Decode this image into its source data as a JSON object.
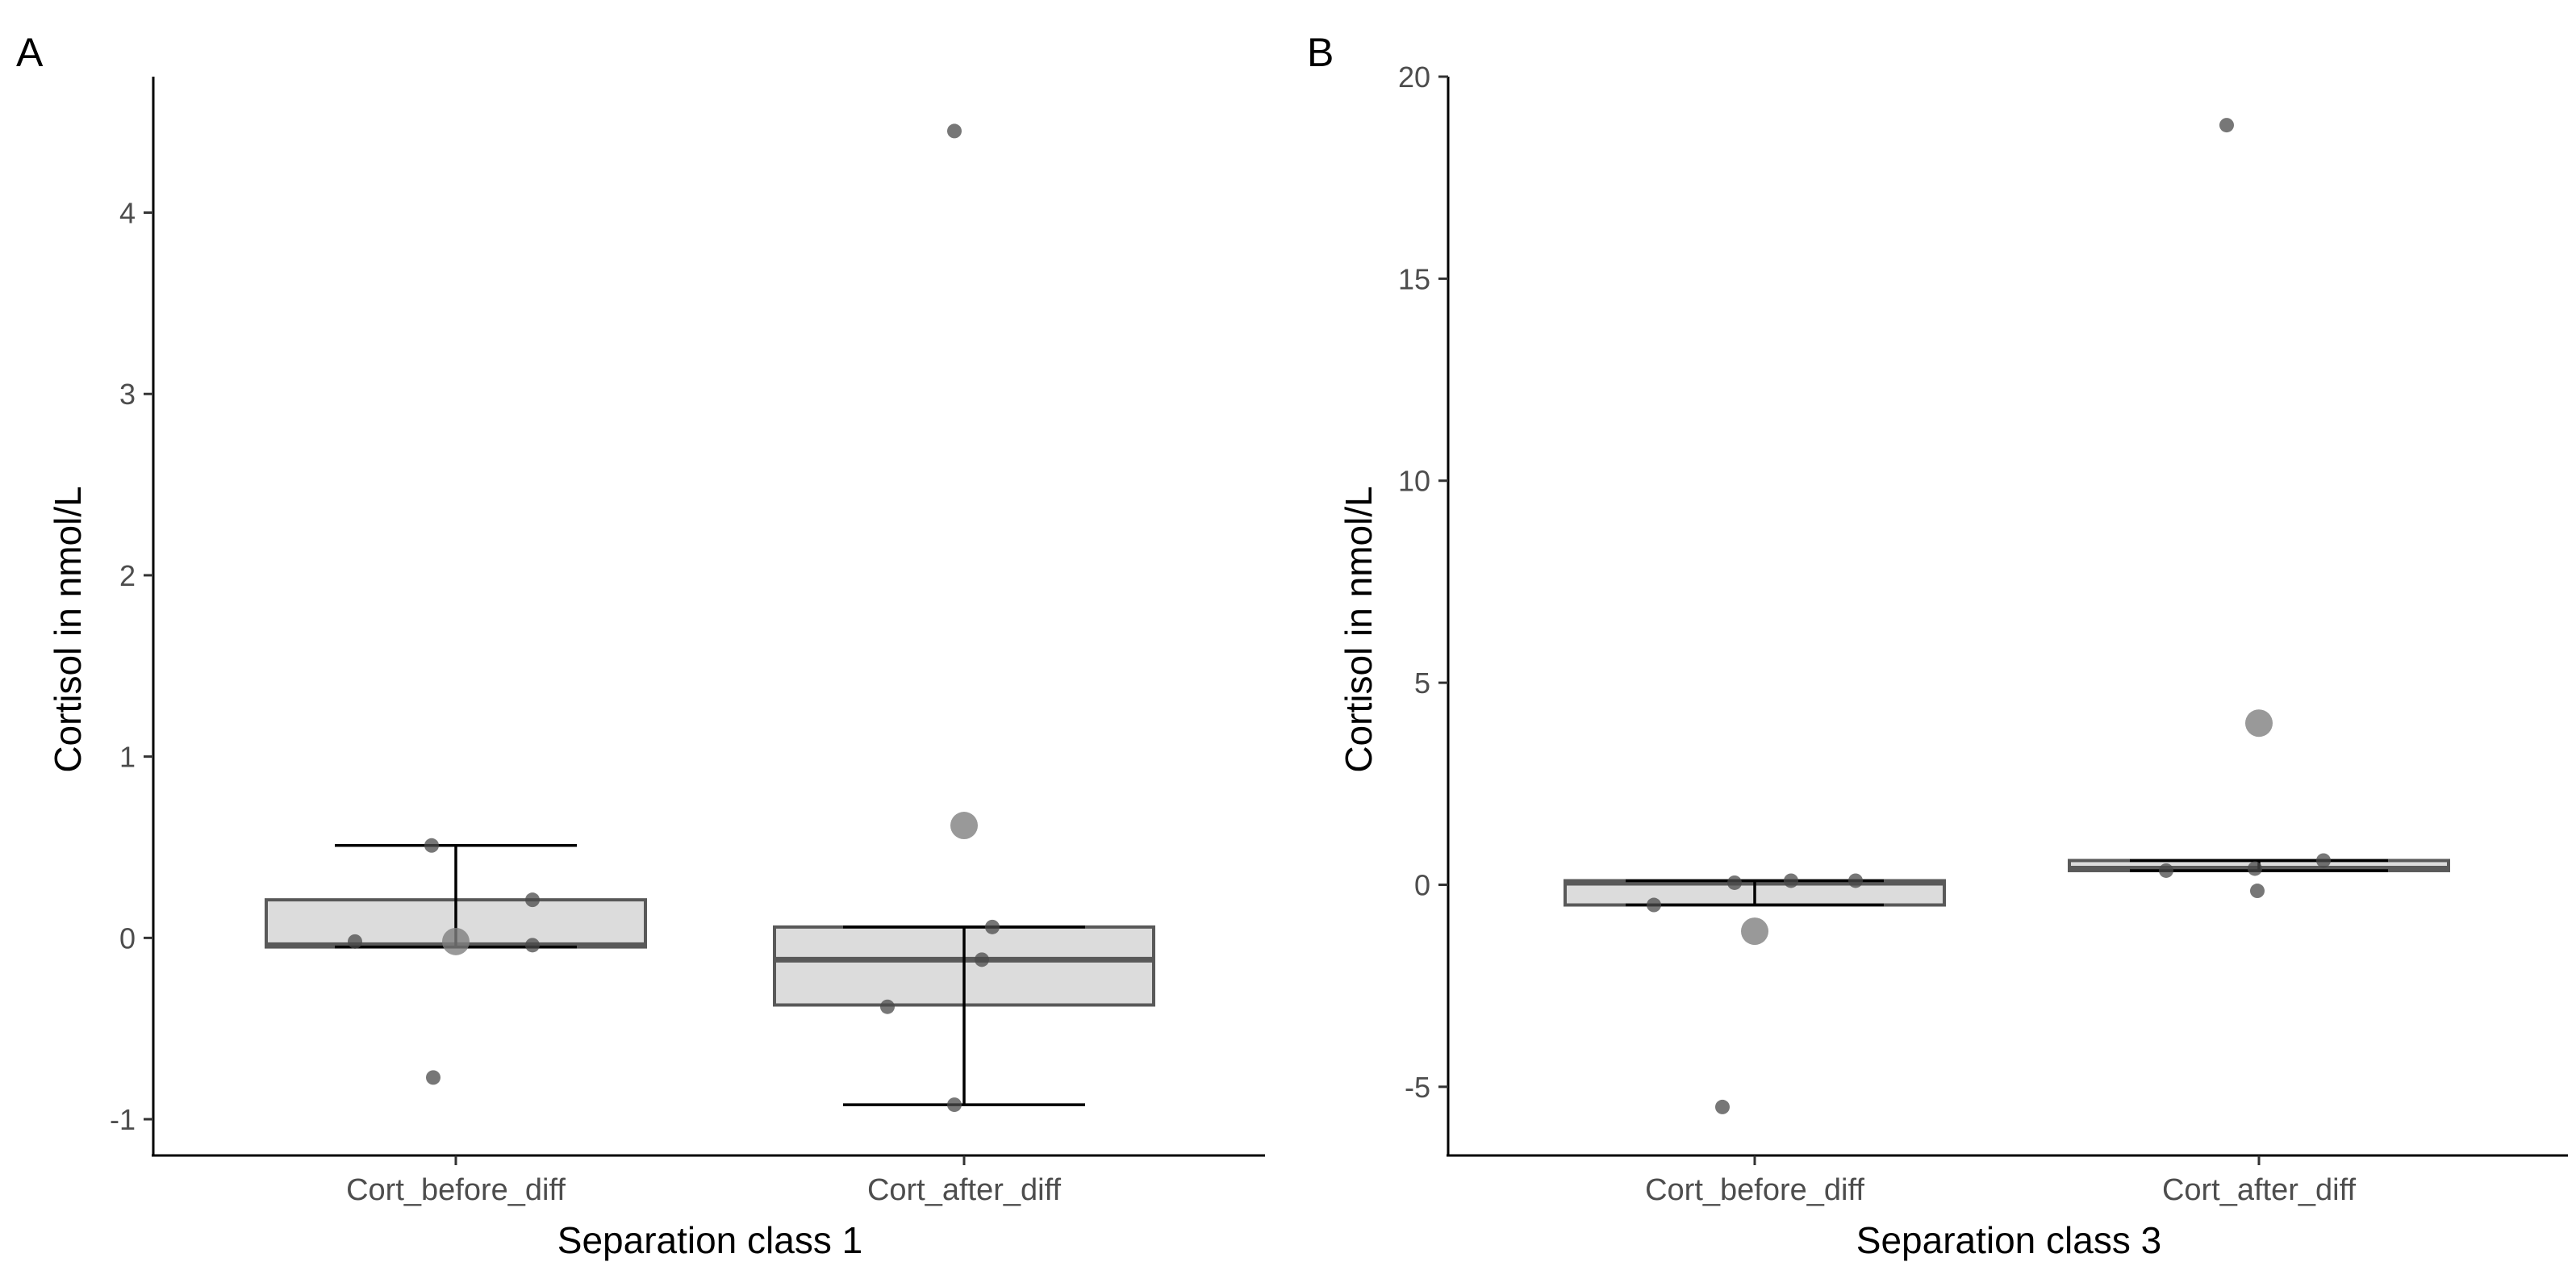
{
  "chart_data": [
    {
      "type": "box",
      "panel_label": "A",
      "xlabel": "Separation class 1",
      "ylabel": "Cortisol in nmol/L",
      "categories": [
        "Cort_before_diff",
        "Cort_after_diff"
      ],
      "ylim": [
        -1.2,
        4.75
      ],
      "yticks": [
        -1,
        0,
        1,
        2,
        3,
        4
      ],
      "ytick_labels": [
        "-1",
        "0",
        "1",
        "2",
        "3",
        "4"
      ],
      "boxes": [
        {
          "category": "Cort_before_diff",
          "q1": -0.05,
          "median": -0.04,
          "q3": 0.21,
          "whisker_low": -0.05,
          "whisker_high": 0.51,
          "mean": -0.02
        },
        {
          "category": "Cort_after_diff",
          "q1": -0.37,
          "median": -0.12,
          "q3": 0.06,
          "whisker_low": -0.92,
          "whisker_high": 0.06,
          "mean": 0.62
        }
      ],
      "points": [
        {
          "category": "Cort_before_diff",
          "values": [
            0.51,
            0.21,
            -0.02,
            -0.04,
            -0.77
          ]
        },
        {
          "category": "Cort_after_diff",
          "values": [
            4.45,
            0.06,
            -0.12,
            -0.38,
            -0.92
          ]
        }
      ]
    },
    {
      "type": "box",
      "panel_label": "B",
      "xlabel": "Separation class 3",
      "ylabel": "Cortisol in nmol/L",
      "categories": [
        "Cort_before_diff",
        "Cort_after_diff"
      ],
      "ylim": [
        -6.7,
        20.0
      ],
      "yticks": [
        -5,
        0,
        5,
        10,
        15,
        20
      ],
      "ytick_labels": [
        "-5",
        "0",
        "5",
        "10",
        "15",
        "20"
      ],
      "boxes": [
        {
          "category": "Cort_before_diff",
          "q1": -0.5,
          "median": 0.05,
          "q3": 0.1,
          "whisker_low": -0.5,
          "whisker_high": 0.1,
          "mean": -1.15
        },
        {
          "category": "Cort_after_diff",
          "q1": 0.35,
          "median": 0.4,
          "q3": 0.6,
          "whisker_low": 0.35,
          "whisker_high": 0.6,
          "mean": 4.0
        }
      ],
      "points": [
        {
          "category": "Cort_before_diff",
          "values": [
            0.1,
            0.1,
            0.05,
            -0.5,
            -5.5
          ]
        },
        {
          "category": "Cort_after_diff",
          "values": [
            18.8,
            0.6,
            0.4,
            0.35,
            -0.15
          ]
        }
      ]
    }
  ]
}
